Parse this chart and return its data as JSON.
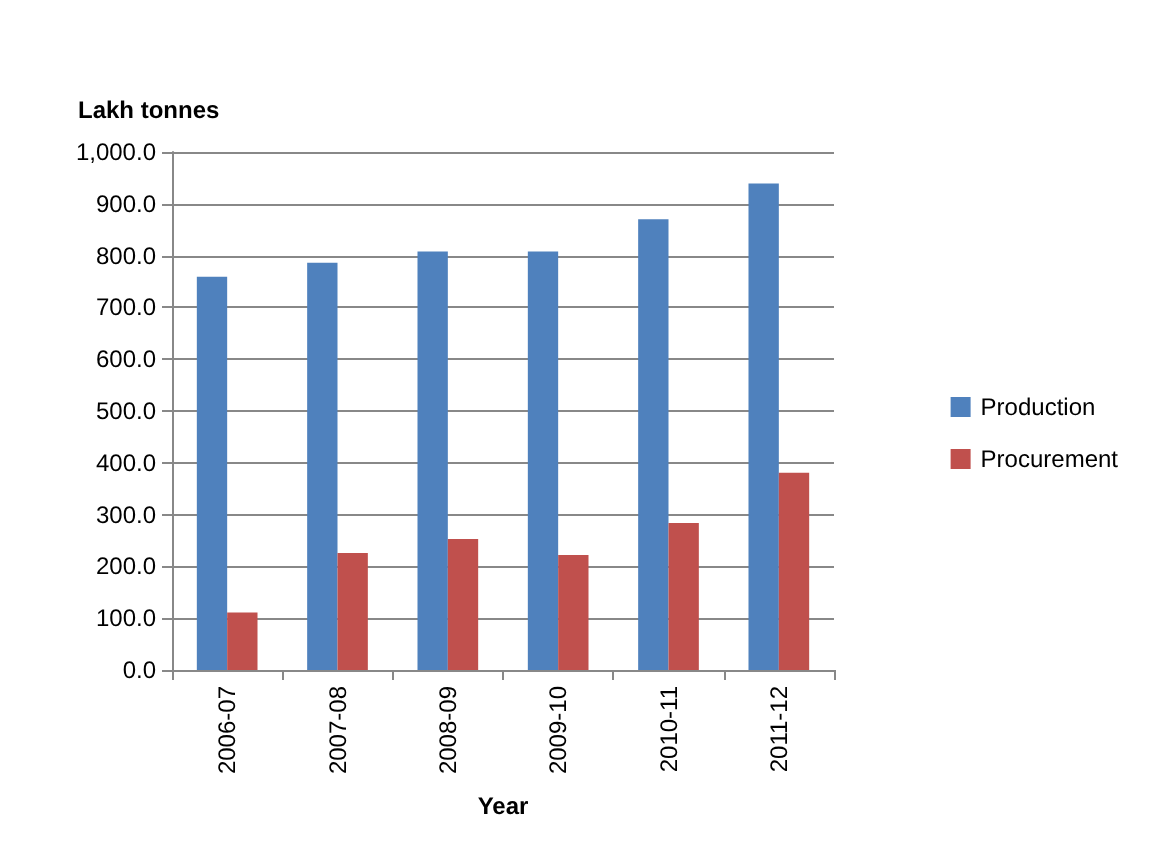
{
  "chart_data": {
    "type": "bar",
    "ylabel": "Lakh tonnes",
    "xlabel": "Year",
    "categories": [
      "2006-07",
      "2007-08",
      "2008-09",
      "2009-10",
      "2010-11",
      "2011-12"
    ],
    "series": [
      {
        "name": "Production",
        "color": "#4f81bd",
        "values": [
          759,
          786,
          808,
          808,
          870,
          939
        ]
      },
      {
        "name": "Procurement",
        "color": "#c0504d",
        "values": [
          111,
          226,
          253,
          222,
          284,
          381
        ]
      }
    ],
    "ylim": [
      0,
      1000
    ],
    "yticks": [
      {
        "value": 0,
        "label": "0.0"
      },
      {
        "value": 100,
        "label": "100.0"
      },
      {
        "value": 200,
        "label": "200.0"
      },
      {
        "value": 300,
        "label": "300.0"
      },
      {
        "value": 400,
        "label": "400.0"
      },
      {
        "value": 500,
        "label": "500.0"
      },
      {
        "value": 600,
        "label": "600.0"
      },
      {
        "value": 700,
        "label": "700.0"
      },
      {
        "value": 800,
        "label": "800.0"
      },
      {
        "value": 900,
        "label": "900.0"
      },
      {
        "value": 1000,
        "label": "1,000.0"
      }
    ],
    "grid": "y",
    "legend": "right"
  }
}
